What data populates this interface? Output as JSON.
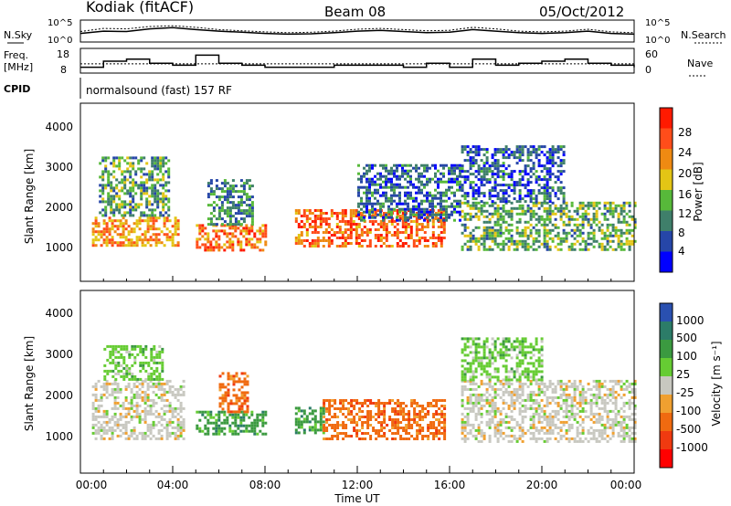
{
  "header": {
    "station": "Kodiak (fitACF)",
    "beam": "Beam 08",
    "date": "05/Oct/2012"
  },
  "noise_panel": {
    "left_label": "N.Sky",
    "right_label": "N.Search",
    "left_ticks": [
      "10^5",
      "10^0"
    ],
    "right_ticks": [
      "10^5",
      "10^0"
    ]
  },
  "freq_panel": {
    "left_label_1": "Freq.",
    "left_label_2": "[MHz]",
    "right_label": "Nave",
    "left_ticks": [
      "18",
      "8"
    ],
    "right_ticks": [
      "60",
      "0"
    ]
  },
  "cpid": {
    "label": "CPID",
    "mode": "normalsound (fast) 157 RF"
  },
  "x_axis": {
    "label": "Time UT",
    "ticks": [
      "00:00",
      "04:00",
      "08:00",
      "12:00",
      "16:00",
      "20:00",
      "00:00"
    ]
  },
  "power_panel": {
    "ylabel": "Slant Range [km]",
    "yticks": [
      "1000",
      "2000",
      "3000",
      "4000"
    ],
    "colorbar_label": "Power [dB]",
    "colorbar_ticks": [
      "4",
      "8",
      "12",
      "16",
      "20",
      "24",
      "28"
    ],
    "colors": [
      "#0000ff",
      "#2646a8",
      "#3f7f6a",
      "#57b93a",
      "#e3c515",
      "#ef8a12",
      "#ff4d1a",
      "#ff1a00"
    ]
  },
  "velocity_panel": {
    "ylabel": "Slant Range [km]",
    "yticks": [
      "1000",
      "2000",
      "3000",
      "4000"
    ],
    "colorbar_label": "Velocity [m s⁻¹]",
    "colorbar_ticks": [
      "1000",
      "500",
      "100",
      "25",
      "-25",
      "-100",
      "-500",
      "-1000"
    ],
    "colors": [
      "#2a50b0",
      "#2c7c68",
      "#3b9a40",
      "#66cc33",
      "#c8c8c0",
      "#f0a030",
      "#f06a10",
      "#f03a10",
      "#ff0000"
    ]
  },
  "chart_data": [
    {
      "type": "line",
      "title": "N.Sky / N.Search",
      "x_hours": [
        0,
        1,
        2,
        3,
        4,
        5,
        6,
        7,
        8,
        9,
        10,
        11,
        12,
        13,
        14,
        15,
        16,
        17,
        18,
        19,
        20,
        21,
        22,
        23,
        24
      ],
      "series": [
        {
          "name": "N.Sky",
          "values": [
            2.0,
            2.6,
            2.5,
            3.2,
            3.5,
            3.0,
            2.6,
            2.3,
            2.0,
            1.8,
            1.9,
            2.2,
            2.6,
            2.8,
            2.5,
            2.2,
            2.3,
            3.0,
            2.6,
            2.2,
            2.0,
            2.2,
            2.6,
            2.0,
            1.8
          ]
        },
        {
          "name": "N.Search",
          "values": [
            2.5,
            3.3,
            3.2,
            3.8,
            4.0,
            3.6,
            3.0,
            2.7,
            2.4,
            2.2,
            2.3,
            2.6,
            3.1,
            3.3,
            3.0,
            2.7,
            2.8,
            3.6,
            3.2,
            2.6,
            2.4,
            2.6,
            3.1,
            2.4,
            2.2
          ]
        }
      ],
      "ylim": [
        0,
        5
      ]
    },
    {
      "type": "line",
      "title": "Freq. / Nave",
      "x_hours": [
        0,
        1,
        2,
        3,
        4,
        5,
        6,
        7,
        8,
        9,
        10,
        11,
        12,
        13,
        14,
        15,
        16,
        17,
        18,
        19,
        20,
        21,
        22,
        23,
        24
      ],
      "series": [
        {
          "name": "Freq. [MHz]",
          "values": [
            10,
            13,
            14,
            12,
            11,
            16,
            12,
            11,
            10,
            10,
            10,
            11,
            11,
            11,
            10,
            12,
            10,
            14,
            11,
            12,
            13,
            14,
            12,
            11,
            10
          ]
        },
        {
          "name": "Nave",
          "values": [
            22,
            22,
            22,
            22,
            22,
            22,
            22,
            22,
            22,
            22,
            22,
            22,
            22,
            22,
            22,
            22,
            22,
            22,
            22,
            22,
            22,
            22,
            22,
            22,
            22
          ]
        }
      ],
      "ylim": [
        8,
        18
      ]
    },
    {
      "type": "heatmap",
      "title": "Power [dB]",
      "xlabel": "Time UT",
      "ylabel": "Slant Range [km]",
      "xlim": [
        0,
        24
      ],
      "ylim": [
        0,
        4500
      ],
      "regions": [
        {
          "t0": 0.5,
          "t1": 4.2,
          "r0": 800,
          "r1": 1600,
          "power_db": 24
        },
        {
          "t0": 0.8,
          "t1": 3.8,
          "r0": 1600,
          "r1": 3200,
          "power_db": 14
        },
        {
          "t0": 5.0,
          "t1": 8.0,
          "r0": 700,
          "r1": 1400,
          "power_db": 26
        },
        {
          "t0": 5.5,
          "t1": 7.5,
          "r0": 1400,
          "r1": 2600,
          "power_db": 12
        },
        {
          "t0": 9.3,
          "t1": 15.8,
          "r0": 800,
          "r1": 1800,
          "power_db": 27
        },
        {
          "t0": 12.0,
          "t1": 16.5,
          "r0": 1500,
          "r1": 3000,
          "power_db": 10
        },
        {
          "t0": 16.5,
          "t1": 24.0,
          "r0": 700,
          "r1": 2000,
          "power_db": 15
        },
        {
          "t0": 16.5,
          "t1": 21.0,
          "r0": 2000,
          "r1": 3500,
          "power_db": 9
        }
      ]
    },
    {
      "type": "heatmap",
      "title": "Velocity [m s-1]",
      "xlabel": "Time UT",
      "ylabel": "Slant Range [km]",
      "xlim": [
        0,
        24
      ],
      "ylim": [
        0,
        4500
      ],
      "regions": [
        {
          "t0": 0.5,
          "t1": 4.5,
          "r0": 800,
          "r1": 2300,
          "velocity": 0
        },
        {
          "t0": 1.0,
          "t1": 3.5,
          "r0": 2300,
          "r1": 3200,
          "velocity": 80
        },
        {
          "t0": 5.0,
          "t1": 8.0,
          "r0": 900,
          "r1": 1500,
          "velocity": 400
        },
        {
          "t0": 6.0,
          "t1": 7.2,
          "r0": 1500,
          "r1": 2500,
          "velocity": -200
        },
        {
          "t0": 9.3,
          "t1": 10.5,
          "r0": 900,
          "r1": 1600,
          "velocity": 150
        },
        {
          "t0": 10.5,
          "t1": 15.8,
          "r0": 800,
          "r1": 1800,
          "velocity": -300
        },
        {
          "t0": 16.5,
          "t1": 24.0,
          "r0": 700,
          "r1": 2300,
          "velocity": 0
        },
        {
          "t0": 16.5,
          "t1": 20.0,
          "r0": 2300,
          "r1": 3400,
          "velocity": 60
        }
      ]
    }
  ]
}
